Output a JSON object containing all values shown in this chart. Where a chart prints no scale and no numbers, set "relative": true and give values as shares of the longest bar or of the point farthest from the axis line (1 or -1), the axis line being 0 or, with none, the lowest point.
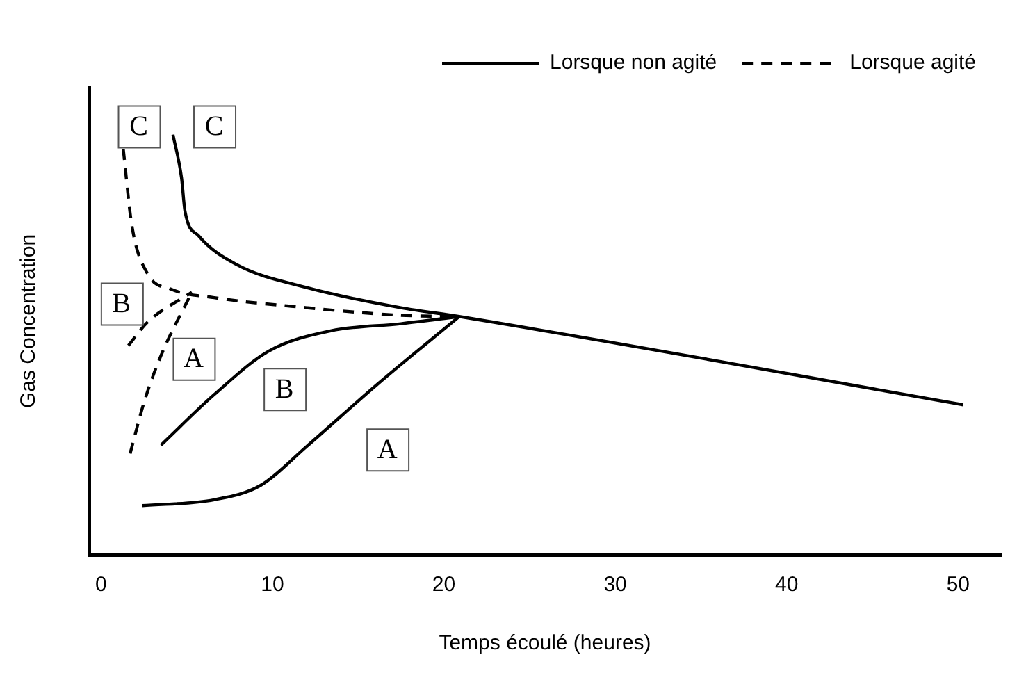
{
  "chart_data": {
    "type": "line",
    "relative": true,
    "xlabel": "Temps écoulé (heures)",
    "ylabel": "Gas Concentration",
    "xlim": [
      -0.7,
      52.5
    ],
    "xticks": [
      0,
      10,
      20,
      30,
      40,
      50
    ],
    "tick_labels": "x",
    "grid": false,
    "legend": "top right",
    "marker": "none",
    "series": [
      {
        "name": "Lorsque non agité",
        "color": "#000000",
        "line_style": "solid",
        "x": [
          2.4,
          6.6,
          9.3,
          12.0,
          16.1,
          20.9
        ],
        "values": [
          0.117,
          0.131,
          0.165,
          0.258,
          0.405,
          0.567
        ]
      },
      {
        "color": "#000000",
        "line_style": "solid",
        "x": [
          3.5,
          6.6,
          9.8,
          13.4,
          17.5,
          20.9
        ],
        "values": [
          0.261,
          0.381,
          0.485,
          0.533,
          0.55,
          0.567
        ]
      },
      {
        "color": "#000000",
        "line_style": "solid",
        "x": [
          4.2,
          4.7,
          4.9,
          5.7,
          7.9,
          12.0,
          17.5,
          20.9,
          50.3
        ],
        "values": [
          1.0,
          0.897,
          0.818,
          0.759,
          0.691,
          0.636,
          0.588,
          0.567,
          0.357
        ]
      },
      {
        "name": "Lorsque agité",
        "color": "#000000",
        "line_style": "dashed",
        "x": [
          1.7,
          2.5,
          3.5,
          5.3
        ],
        "values": [
          0.241,
          0.361,
          0.474,
          0.625
        ]
      },
      {
        "color": "#000000",
        "line_style": "dashed",
        "x": [
          1.6,
          2.7,
          5.3
        ],
        "values": [
          0.498,
          0.553,
          0.625
        ]
      },
      {
        "color": "#000000",
        "line_style": "dashed",
        "x": [
          1.3,
          1.8,
          2.7,
          4.1,
          6.6,
          12.0,
          17.5,
          20.9
        ],
        "values": [
          0.966,
          0.784,
          0.67,
          0.632,
          0.612,
          0.588,
          0.57,
          0.567
        ]
      }
    ],
    "annotations": [
      {
        "text": "A",
        "x": 16.7,
        "y": 0.251
      },
      {
        "text": "B",
        "x": 10.7,
        "y": 0.395
      },
      {
        "text": "C",
        "x": 6.6,
        "y": 1.02
      },
      {
        "text": "A",
        "x": 5.4,
        "y": 0.467
      },
      {
        "text": "B",
        "x": 1.2,
        "y": 0.598
      },
      {
        "text": "C",
        "x": 2.2,
        "y": 1.02
      }
    ]
  }
}
